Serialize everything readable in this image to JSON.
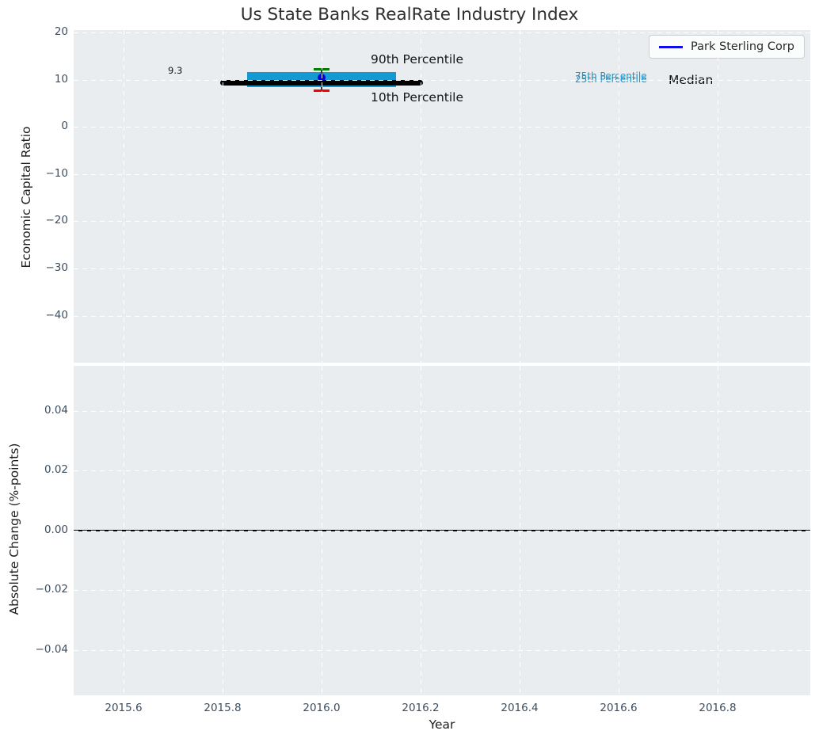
{
  "title": "Us State Banks RealRate Industry Index",
  "legend": {
    "label": "Park Sterling Corp",
    "line_color": "#0d0df0"
  },
  "colors": {
    "axes_background": "#e9edef",
    "grid": "#ffffff",
    "tick_label": "#3d4e60",
    "percentile_band": "#149ad3",
    "percentile_text": "#149ad3",
    "median_line": "#000000",
    "p90_cap": "#008000",
    "p10_cap": "#f50000",
    "marker": "#0000d9",
    "zero_line": "#000000"
  },
  "chart_data": [
    {
      "type": "line",
      "subplot": "top",
      "title": "Us State Banks RealRate Industry Index",
      "xlabel": "Year",
      "ylabel": "Economic Capital Ratio",
      "xlim": [
        2015.5,
        2016.99
      ],
      "ylim": [
        -50.6,
        20.8
      ],
      "grid": true,
      "legend_position": "upper right",
      "xticks": [
        {
          "v": 2015.6,
          "label": "2015.6"
        },
        {
          "v": 2015.8,
          "label": "2015.8"
        },
        {
          "v": 2016.0,
          "label": "2016.0"
        },
        {
          "v": 2016.2,
          "label": "2016.2"
        },
        {
          "v": 2016.4,
          "label": "2016.4"
        },
        {
          "v": 2016.6,
          "label": "2016.6"
        },
        {
          "v": 2016.8,
          "label": "2016.8"
        }
      ],
      "yticks": [
        {
          "v": 20,
          "label": "20"
        },
        {
          "v": 10,
          "label": "10"
        },
        {
          "v": 0,
          "label": "0"
        },
        {
          "v": -10,
          "label": "−10"
        },
        {
          "v": -20,
          "label": "−20"
        },
        {
          "v": -30,
          "label": "−30"
        },
        {
          "v": -40,
          "label": "−40"
        }
      ],
      "series": {
        "park_sterling": {
          "name": "Park Sterling Corp",
          "x": 2016.0,
          "y": 10.4,
          "marker": "circle",
          "color": "#0000d9"
        },
        "median": {
          "x_start": 2015.8,
          "x_end": 2016.2,
          "value": 9.3,
          "color": "#000000"
        },
        "iqr_band": {
          "x_start": 2015.85,
          "x_end": 2016.15,
          "p25": 9.8,
          "p75": 10.3,
          "color": "#149ad3"
        },
        "p90_cap": {
          "x": 2016.0,
          "value": 12.3,
          "color": "#008000"
        },
        "p10_cap": {
          "x": 2016.0,
          "value": 7.7,
          "color": "#f50000"
        }
      },
      "annotations": {
        "median_value": "9.3",
        "p90": "90th Percentile",
        "p10": "10th Percentile",
        "p75": "75th Percentile",
        "p25": "25th Percentile",
        "median": "Median"
      }
    },
    {
      "type": "line",
      "subplot": "bottom",
      "xlabel": "Year",
      "ylabel": "Absolute Change (%-points)",
      "xlim": [
        2015.5,
        2016.99
      ],
      "ylim": [
        -0.055,
        0.055
      ],
      "grid": true,
      "zero_line": 0.0,
      "xticks": [
        {
          "v": 2015.6,
          "label": "2015.6"
        },
        {
          "v": 2015.8,
          "label": "2015.8"
        },
        {
          "v": 2016.0,
          "label": "2016.0"
        },
        {
          "v": 2016.2,
          "label": "2016.2"
        },
        {
          "v": 2016.4,
          "label": "2016.4"
        },
        {
          "v": 2016.6,
          "label": "2016.6"
        },
        {
          "v": 2016.8,
          "label": "2016.8"
        }
      ],
      "yticks": [
        {
          "v": 0.04,
          "label": "0.04"
        },
        {
          "v": 0.02,
          "label": "0.02"
        },
        {
          "v": 0.0,
          "label": "0.00"
        },
        {
          "v": -0.02,
          "label": "−0.02"
        },
        {
          "v": -0.04,
          "label": "−0.04"
        }
      ]
    }
  ]
}
